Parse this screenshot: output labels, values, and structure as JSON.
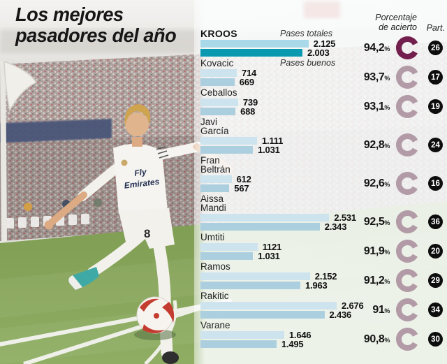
{
  "title": {
    "line1": "Los mejores",
    "line2": "pasadores del año"
  },
  "headers": {
    "pct_line1": "Porcentaje",
    "pct_line2": "de acierto",
    "part": "Part.",
    "series_total": "Pases totales",
    "series_buenos": "Pases buenos"
  },
  "photo": {
    "shirt_line1": "Fly",
    "shirt_line2": "Emirates",
    "shorts_number": "8"
  },
  "colors": {
    "bar_total": "#cde3ed",
    "bar_buenos": "#accfdf",
    "bar_total_highlight": "#a9d9e8",
    "bar_buenos_highlight": "#0899b1",
    "ring": "#b29ba7",
    "ring_highlight": "#731f4d",
    "badge_bg": "#0d0d0d",
    "badge_text": "#ffffff"
  },
  "chart_data": {
    "type": "bar",
    "orientation": "horizontal",
    "title": "Los mejores pasadores del año",
    "series": [
      "Pases totales",
      "Pases buenos"
    ],
    "x_max": 2676,
    "legend_position": "inline-top",
    "grid": false,
    "players": [
      {
        "name": "KROOS",
        "name2": "",
        "totales": 2125,
        "buenos": 2003,
        "totales_label": "2.125",
        "buenos_label": "2.003",
        "pct": "94,2",
        "part": "26",
        "highlight": true
      },
      {
        "name": "Kovacic",
        "name2": "",
        "totales": 714,
        "buenos": 669,
        "totales_label": "714",
        "buenos_label": "669",
        "pct": "93,7",
        "part": "17",
        "highlight": false
      },
      {
        "name": "Ceballos",
        "name2": "",
        "totales": 739,
        "buenos": 688,
        "totales_label": "739",
        "buenos_label": "688",
        "pct": "93,1",
        "part": "19",
        "highlight": false
      },
      {
        "name": "Javi",
        "name2": "García",
        "totales": 1111,
        "buenos": 1031,
        "totales_label": "1.111",
        "buenos_label": "1.031",
        "pct": "92,8",
        "part": "24",
        "highlight": false
      },
      {
        "name": "Fran",
        "name2": "Beltrán",
        "totales": 612,
        "buenos": 567,
        "totales_label": "612",
        "buenos_label": "567",
        "pct": "92,6",
        "part": "16",
        "highlight": false
      },
      {
        "name": "Aissa",
        "name2": "Mandi",
        "totales": 2531,
        "buenos": 2343,
        "totales_label": "2.531",
        "buenos_label": "2.343",
        "pct": "92,5",
        "part": "36",
        "highlight": false
      },
      {
        "name": "Umtiti",
        "name2": "",
        "totales": 1121,
        "buenos": 1031,
        "totales_label": "1121",
        "buenos_label": "1.031",
        "pct": "91,9",
        "part": "20",
        "highlight": false
      },
      {
        "name": "Ramos",
        "name2": "",
        "totales": 2152,
        "buenos": 1963,
        "totales_label": "2.152",
        "buenos_label": "1.963",
        "pct": "91,2",
        "part": "29",
        "highlight": false
      },
      {
        "name": "Rakitic",
        "name2": "",
        "totales": 2676,
        "buenos": 2436,
        "totales_label": "2.676",
        "buenos_label": "2.436",
        "pct": "91",
        "part": "34",
        "highlight": false
      },
      {
        "name": "Varane",
        "name2": "",
        "totales": 1646,
        "buenos": 1495,
        "totales_label": "1.646",
        "buenos_label": "1.495",
        "pct": "90,8",
        "part": "30",
        "highlight": false
      }
    ]
  }
}
